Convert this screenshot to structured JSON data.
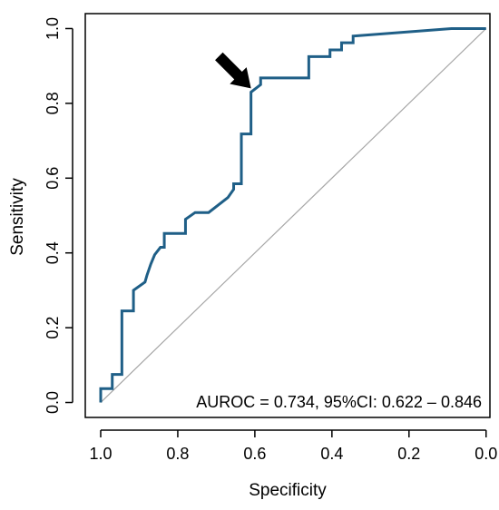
{
  "chart_data": {
    "type": "line",
    "xlabel": "Specificity",
    "ylabel": "Sensitivity",
    "x_reversed": true,
    "xlim": [
      1.04,
      -0.01
    ],
    "ylim": [
      -0.04,
      1.04
    ],
    "xticks": [
      1.0,
      0.8,
      0.6,
      0.4,
      0.2,
      0.0
    ],
    "xtick_labels": [
      "1.0",
      "0.8",
      "0.6",
      "0.4",
      "0.2",
      "0.0"
    ],
    "yticks": [
      0.0,
      0.2,
      0.4,
      0.6,
      0.8,
      1.0
    ],
    "ytick_labels": [
      "0.0",
      "0.2",
      "0.4",
      "0.6",
      "0.8",
      "1.0"
    ],
    "grid": false,
    "annotation_text": "AUROC = 0.734, 95%CI: 0.622 – 0.846",
    "diagonal_reference": {
      "x": [
        1.0,
        0.0
      ],
      "y": [
        0.0,
        1.0
      ],
      "color": "#a6a6a6"
    },
    "arrow_marker": {
      "points_to": {
        "x": 0.61,
        "y": 0.84
      }
    },
    "series": [
      {
        "color": "#1f5f87",
        "x": [
          1.0,
          1.0,
          0.97,
          0.97,
          0.945,
          0.945,
          0.915,
          0.915,
          0.885,
          0.88,
          0.87,
          0.86,
          0.845,
          0.835,
          0.835,
          0.78,
          0.78,
          0.755,
          0.72,
          0.67,
          0.655,
          0.655,
          0.635,
          0.635,
          0.61,
          0.61,
          0.585,
          0.585,
          0.545,
          0.46,
          0.46,
          0.405,
          0.405,
          0.375,
          0.375,
          0.345,
          0.345,
          0.09,
          0.0
        ],
        "y": [
          0.0,
          0.037,
          0.037,
          0.075,
          0.075,
          0.245,
          0.245,
          0.3,
          0.322,
          0.34,
          0.37,
          0.395,
          0.415,
          0.415,
          0.452,
          0.452,
          0.49,
          0.508,
          0.508,
          0.548,
          0.57,
          0.585,
          0.585,
          0.718,
          0.718,
          0.83,
          0.85,
          0.868,
          0.868,
          0.868,
          0.925,
          0.925,
          0.943,
          0.943,
          0.962,
          0.962,
          0.98,
          1.0,
          1.0
        ]
      }
    ]
  }
}
